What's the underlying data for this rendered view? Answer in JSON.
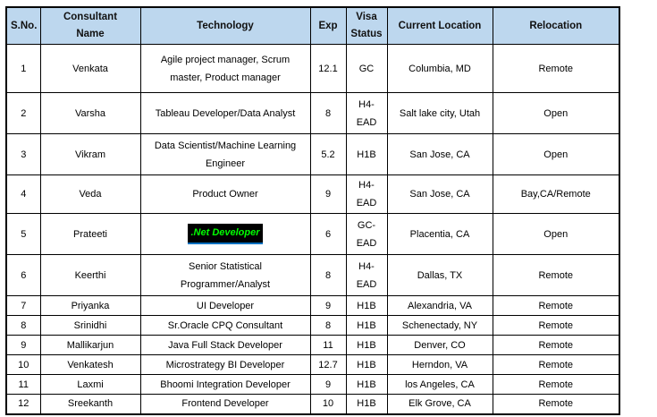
{
  "theme": {
    "header_bg": "#BDD7EE",
    "border_color": "#000000",
    "highlight_bg": "#000000",
    "highlight_fg": "#00FF00",
    "highlight_underline": "#0070C0"
  },
  "table": {
    "columns": {
      "sno": "S.No.",
      "name": "Consultant Name",
      "technology": "Technology",
      "exp": "Exp",
      "visa": "Visa Status",
      "location": "Current Location",
      "relocation": "Relocation"
    },
    "rows": [
      {
        "sno": "1",
        "name": "Venkata",
        "technology": "Agile project manager, Scrum master, Product manager",
        "exp": "12.1",
        "visa": "GC",
        "location": "Columbia, MD",
        "relocation": "Remote"
      },
      {
        "sno": "2",
        "name": "Varsha",
        "technology": "Tableau Developer/Data Analyst",
        "exp": "8",
        "visa": "H4-EAD",
        "location": "Salt lake city, Utah",
        "relocation": "Open"
      },
      {
        "sno": "3",
        "name": "Vikram",
        "technology": "Data Scientist/Machine Learning Engineer",
        "exp": "5.2",
        "visa": "H1B",
        "location": "San Jose, CA",
        "relocation": "Open"
      },
      {
        "sno": "4",
        "name": "Veda",
        "technology": "Product Owner",
        "exp": "9",
        "visa": "H4-EAD",
        "location": "San Jose, CA",
        "relocation": "Bay,CA/Remote"
      },
      {
        "sno": "5",
        "name": "Prateeti",
        "technology": ".Net Developer",
        "exp": "6",
        "visa": "GC-EAD",
        "location": "Placentia, CA",
        "relocation": "Open"
      },
      {
        "sno": "6",
        "name": "Keerthi",
        "technology": "Senior Statistical Programmer/Analyst",
        "exp": "8",
        "visa": "H4-EAD",
        "location": "Dallas, TX",
        "relocation": "Remote"
      },
      {
        "sno": "7",
        "name": "Priyanka",
        "technology": "UI Developer",
        "exp": "9",
        "visa": "H1B",
        "location": "Alexandria, VA",
        "relocation": "Remote"
      },
      {
        "sno": "8",
        "name": "Srinidhi",
        "technology": "Sr.Oracle CPQ Consultant",
        "exp": "8",
        "visa": "H1B",
        "location": "Schenectady, NY",
        "relocation": "Remote"
      },
      {
        "sno": "9",
        "name": "Mallikarjun",
        "technology": "Java Full Stack Developer",
        "exp": "11",
        "visa": "H1B",
        "location": "Denver, CO",
        "relocation": "Remote"
      },
      {
        "sno": "10",
        "name": "Venkatesh",
        "technology": "Microstrategy BI Developer",
        "exp": "12.7",
        "visa": "H1B",
        "location": "Herndon, VA",
        "relocation": "Remote"
      },
      {
        "sno": "11",
        "name": "Laxmi",
        "technology": "Bhoomi Integration Developer",
        "exp": "9",
        "visa": "H1B",
        "location": "los Angeles, CA",
        "relocation": "Remote"
      },
      {
        "sno": "12",
        "name": "Sreekanth",
        "technology": "Frontend Developer",
        "exp": "10",
        "visa": "H1B",
        "location": "Elk Grove, CA",
        "relocation": "Remote"
      }
    ]
  }
}
